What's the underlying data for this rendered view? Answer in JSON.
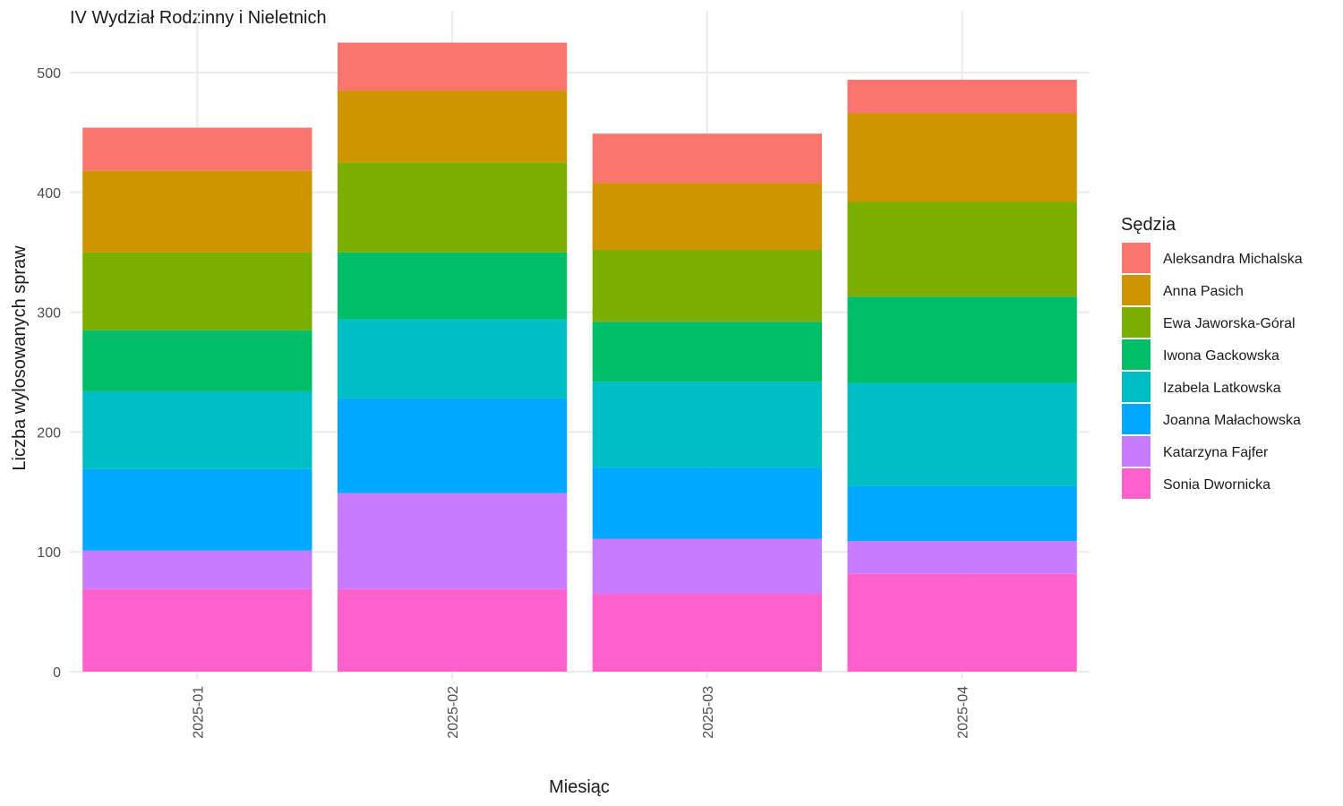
{
  "chart_data": {
    "type": "bar",
    "stacked": true,
    "title": "IV Wydział Rodzinny i Nieletnich",
    "xlabel": "Miesiąc",
    "ylabel": "Liczba wylosowanych spraw",
    "ylim": [
      0,
      540
    ],
    "yticks": [
      0,
      100,
      200,
      300,
      400,
      500
    ],
    "grid": true,
    "legend": {
      "title": "Sędzia",
      "position": "right"
    },
    "categories": [
      "2025-01",
      "2025-02",
      "2025-03",
      "2025-04"
    ],
    "series": [
      {
        "name": "Sonia Dwornicka",
        "color": "#FF61CC",
        "values": [
          69,
          69,
          65,
          82
        ]
      },
      {
        "name": "Katarzyna Fajfer",
        "color": "#C77CFF",
        "values": [
          32,
          80,
          46,
          27
        ]
      },
      {
        "name": "Joanna Małachowska",
        "color": "#00A9FF",
        "values": [
          68,
          79,
          59,
          46
        ]
      },
      {
        "name": "Izabela Latkowska",
        "color": "#00BFC4",
        "values": [
          65,
          66,
          72,
          86
        ]
      },
      {
        "name": "Iwona Gackowska",
        "color": "#00BE67",
        "values": [
          51,
          56,
          50,
          72
        ]
      },
      {
        "name": "Ewa Jaworska-Góral",
        "color": "#7CAE00",
        "values": [
          65,
          75,
          60,
          79
        ]
      },
      {
        "name": "Anna Pasich",
        "color": "#CD9600",
        "values": [
          68,
          60,
          56,
          74
        ]
      },
      {
        "name": "Aleksandra Michalska",
        "color": "#F8766D",
        "values": [
          36,
          40,
          41,
          28
        ]
      }
    ]
  }
}
